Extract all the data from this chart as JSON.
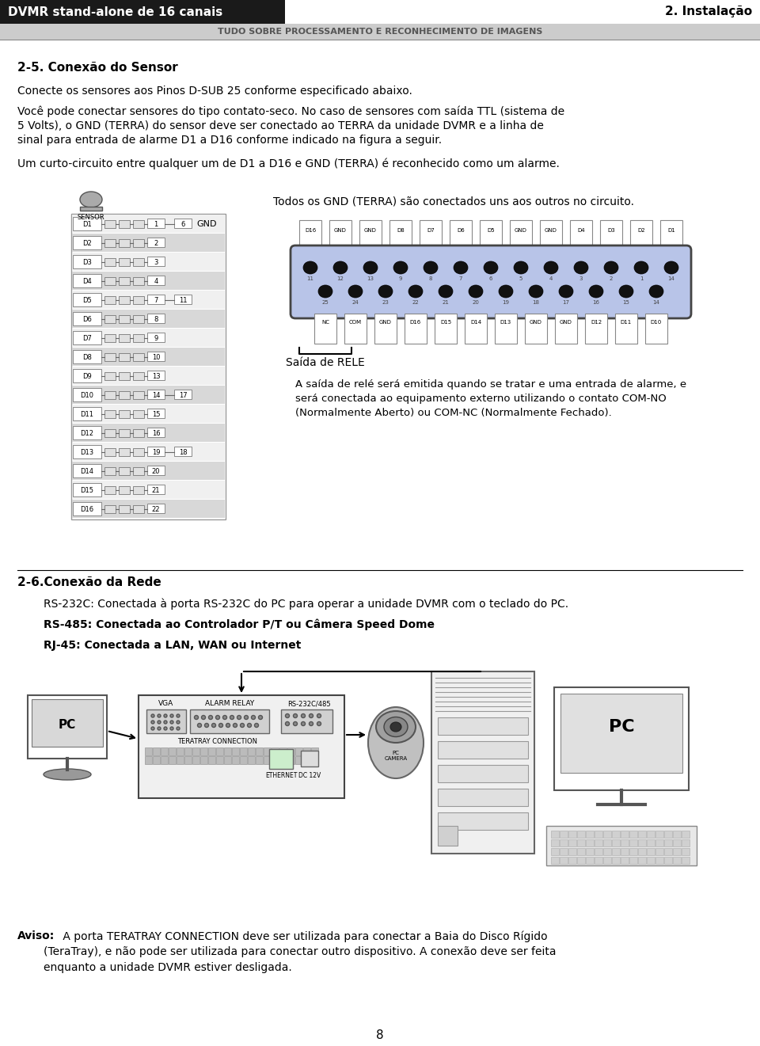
{
  "header_left_text": "DVMR stand-alone de 16 canais",
  "header_right_text": "2. Instalação",
  "header_sub_text": "TUDO SOBRE PROCESSAMENTO E RECONHECIMENTO DE IMAGENS",
  "header_left_bg": "#1a1a1a",
  "header_sub_bg": "#cccccc",
  "section_title": "2-5. Conexão do Sensor",
  "para1": "Conecte os sensores aos Pinos D-SUB 25 conforme especificado abaixo.",
  "para2a": "Você pode conectar sensores do tipo contato-seco. No caso de sensores com saída TTL (sistema de",
  "para2b": "5 Volts), o GND (TERRA) do sensor deve ser conectado ao TERRA da unidade DVMR e a linha de",
  "para2c": "sinal para entrada de alarme D1 a D16 conforme indicado na figura a seguir.",
  "para3": "Um curto-circuito entre qualquer um de D1 a D16 e GND (TERRA) é reconhecido como um alarme.",
  "sensor_note": "Todos os GND (TERRA) são conectados uns aos outros no circuito.",
  "relay_label": "Saída de RELE",
  "relay_note_line1": "A saída de relé será emitida quando se tratar e uma entrada de alarme, e",
  "relay_note_line2": "será conectada ao equipamento externo utilizando o contato COM-NO",
  "relay_note_line3": "(Normalmente Aberto) ou COM-NC (Normalmente Fechado).",
  "section2_title": "2-6.Conexão da Rede",
  "rs232_text": "RS-232C: Conectada à porta RS-232C do PC para operar a unidade DVMR com o teclado do PC.",
  "rs485_text": "RS-485: Conectada ao Controlador P/T ou Câmera Speed Dome",
  "rj45_text": "RJ-45: Conectada a LAN, WAN ou Internet",
  "aviso_bold": "Aviso:",
  "aviso_line1": " A porta TERATRAY CONNECTION deve ser utilizada para conectar a Baia do Disco Rígido",
  "aviso_line2": "(TeraTray), e não pode ser utilizada para conectar outro dispositivo. A conexão deve ser feita",
  "aviso_line3": "enquanto a unidade DVMR estiver desligada.",
  "page_number": "8",
  "d_labels": [
    "D1",
    "D2",
    "D3",
    "D4",
    "D5",
    "D6",
    "D7",
    "D8",
    "D9",
    "D10",
    "D11",
    "D12",
    "D13",
    "D14",
    "D15",
    "D16"
  ],
  "pin_nums_right": [
    "1",
    "2",
    "3",
    "4",
    "7",
    "8",
    "9",
    "10",
    "13",
    "14",
    "15",
    "16",
    "19",
    "20",
    "21",
    "22"
  ],
  "gnd_nums": [
    "6",
    "11",
    "17",
    "18"
  ],
  "gnd_label": "GND",
  "sensor_label": "SENSOR",
  "top_connector_labels": [
    "D16",
    "GND",
    "GND",
    "D8",
    "D7",
    "D6",
    "D5",
    "GND",
    "GND",
    "D4",
    "D3",
    "D2",
    "D1"
  ],
  "bottom_connector_labels": [
    "NC",
    "COM",
    "GND",
    "D16",
    "D15",
    "D14",
    "D13",
    "GND",
    "GND",
    "D12",
    "D11",
    "D10"
  ],
  "connector_fill": "#b8c4e8",
  "connector_border": "#444444"
}
